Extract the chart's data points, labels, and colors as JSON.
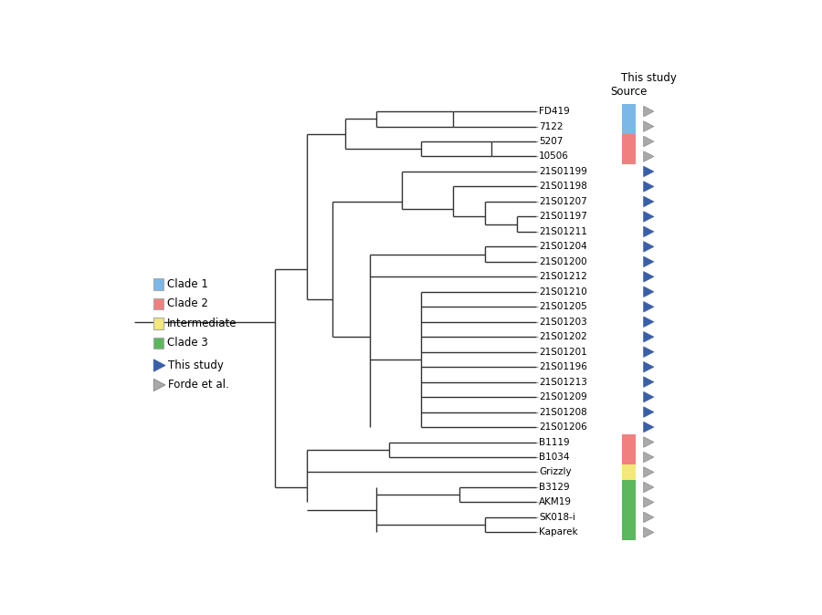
{
  "taxa": [
    "FD419",
    "7122",
    "5207",
    "10506",
    "21S01199",
    "21S01198",
    "21S01207",
    "21S01197",
    "21S01211",
    "21S01204",
    "21S01200",
    "21S01212",
    "21S01210",
    "21S01205",
    "21S01203",
    "21S01202",
    "21S01201",
    "21S01196",
    "21S01213",
    "21S01209",
    "21S01208",
    "21S01206",
    "B1119",
    "B1034",
    "Grizzly",
    "B3129",
    "AKM19",
    "SK018-i",
    "Kaparek"
  ],
  "clade_boxes": [
    {
      "taxa": [
        "FD419",
        "7122"
      ],
      "color": "#7ab8e8"
    },
    {
      "taxa": [
        "5207",
        "10506"
      ],
      "color": "#f08080"
    },
    {
      "taxa": [
        "B1119",
        "B1034"
      ],
      "color": "#f08080"
    },
    {
      "taxa": [
        "Grizzly"
      ],
      "color": "#f5e87a"
    },
    {
      "taxa": [
        "B3129",
        "AKM19",
        "SK018-i",
        "Kaparek"
      ],
      "color": "#5cb85c"
    }
  ],
  "marker_type": {
    "FD419": "forde",
    "7122": "forde",
    "5207": "forde",
    "10506": "forde",
    "21S01199": "study",
    "21S01198": "study",
    "21S01207": "study",
    "21S01197": "study",
    "21S01211": "study",
    "21S01204": "study",
    "21S01200": "study",
    "21S01212": "study",
    "21S01210": "study",
    "21S01205": "study",
    "21S01203": "study",
    "21S01202": "study",
    "21S01201": "study",
    "21S01196": "study",
    "21S01213": "study",
    "21S01209": "study",
    "21S01208": "study",
    "21S01206": "study",
    "B1119": "forde",
    "B1034": "forde",
    "Grizzly": "forde",
    "B3129": "forde",
    "AKM19": "forde",
    "SK018-i": "forde",
    "Kaparek": "forde"
  },
  "legend_clade_colors": [
    "#7ab8e8",
    "#f08080",
    "#f5e87a",
    "#5cb85c"
  ],
  "legend_clade_labels": [
    "Clade 1",
    "Clade 2",
    "Intermediate",
    "Clade 3"
  ],
  "study_marker_color": "#3a5fa8",
  "forde_marker_color": "#aaaaaa",
  "forde_marker_edge": "#888888",
  "line_color": "#333333",
  "dashed_color": "#999999",
  "this_study_label": "This study",
  "source_label": "Source"
}
